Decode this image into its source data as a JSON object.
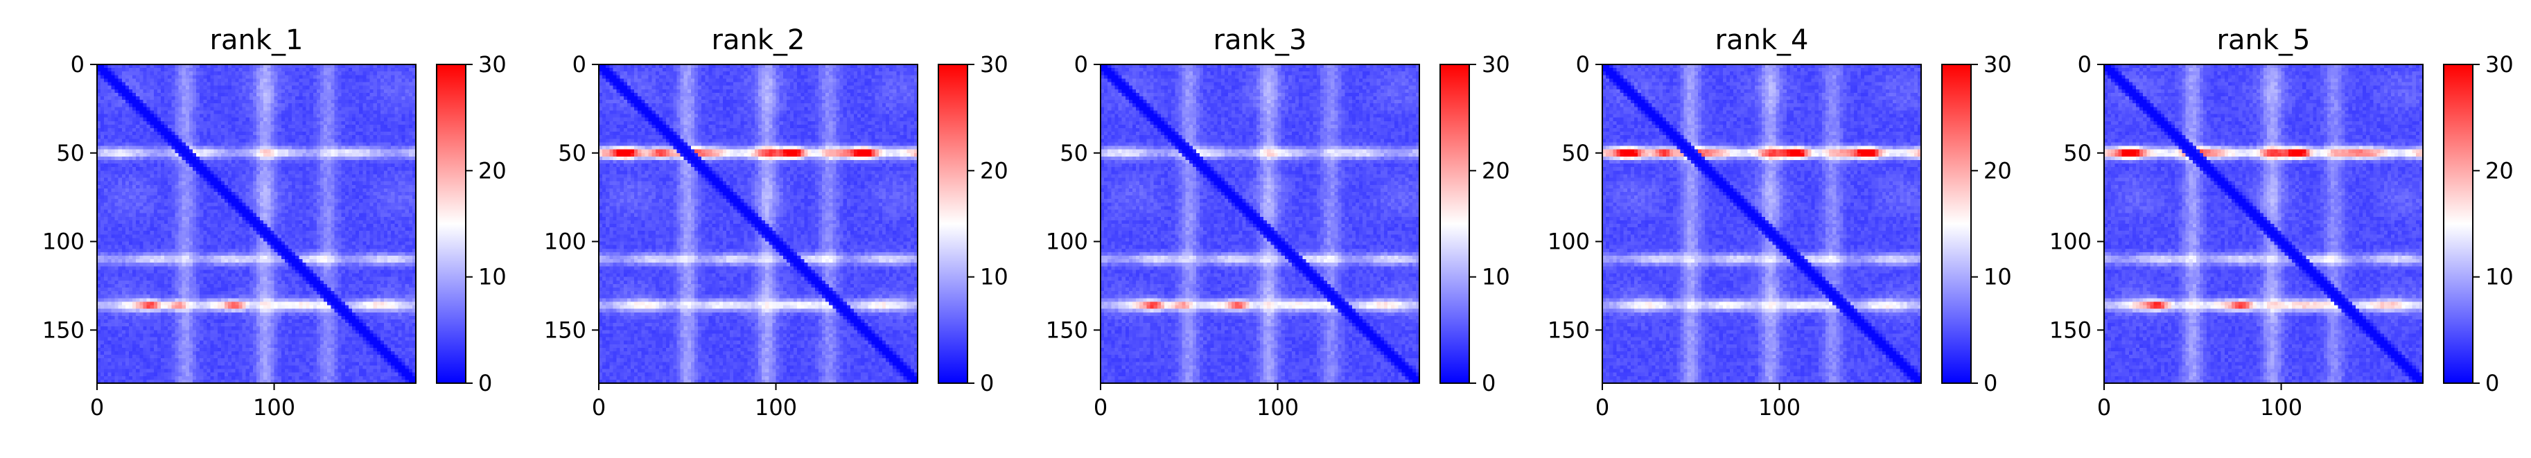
{
  "chart_data": [
    {
      "type": "heatmap",
      "title": "rank_1",
      "size": 180,
      "xlim": [
        0,
        180
      ],
      "ylim": [
        180,
        0
      ],
      "xticks": [
        0,
        100
      ],
      "yticks": [
        0,
        50,
        100,
        150
      ],
      "colorbar": {
        "range": [
          0,
          30
        ],
        "ticks": [
          0,
          10,
          20,
          30
        ],
        "colormap": "bwr"
      },
      "features": {
        "bright_rows": [
          {
            "y": 50,
            "v": 14
          },
          {
            "y": 110,
            "v": 13
          },
          {
            "y": 136,
            "v": 16
          }
        ],
        "bright_cols": [
          {
            "x": 50,
            "v": 11
          },
          {
            "x": 95,
            "v": 12
          },
          {
            "x": 130,
            "v": 10
          }
        ],
        "hot_spots": [
          {
            "x": 30,
            "y": 136,
            "v": 22
          },
          {
            "x": 45,
            "y": 136,
            "v": 20
          },
          {
            "x": 78,
            "y": 136,
            "v": 22
          }
        ]
      }
    },
    {
      "type": "heatmap",
      "title": "rank_2",
      "size": 180,
      "xlim": [
        0,
        180
      ],
      "ylim": [
        180,
        0
      ],
      "xticks": [
        0,
        100
      ],
      "yticks": [
        0,
        50,
        100,
        150
      ],
      "colorbar": {
        "range": [
          0,
          30
        ],
        "ticks": [
          0,
          10,
          20,
          30
        ],
        "colormap": "bwr"
      },
      "features": {
        "bright_rows": [
          {
            "y": 50,
            "v": 24
          },
          {
            "y": 110,
            "v": 13
          },
          {
            "y": 136,
            "v": 15
          }
        ],
        "bright_cols": [
          {
            "x": 50,
            "v": 12
          },
          {
            "x": 95,
            "v": 12
          },
          {
            "x": 130,
            "v": 10
          }
        ],
        "hot_spots": [
          {
            "x": 15,
            "y": 50,
            "v": 26
          },
          {
            "x": 35,
            "y": 50,
            "v": 25
          },
          {
            "x": 110,
            "y": 50,
            "v": 28
          },
          {
            "x": 150,
            "y": 50,
            "v": 27
          }
        ]
      }
    },
    {
      "type": "heatmap",
      "title": "rank_3",
      "size": 180,
      "xlim": [
        0,
        180
      ],
      "ylim": [
        180,
        0
      ],
      "xticks": [
        0,
        100
      ],
      "yticks": [
        0,
        50,
        100,
        150
      ],
      "colorbar": {
        "range": [
          0,
          30
        ],
        "ticks": [
          0,
          10,
          20,
          30
        ],
        "colormap": "bwr"
      },
      "features": {
        "bright_rows": [
          {
            "y": 50,
            "v": 14
          },
          {
            "y": 110,
            "v": 13
          },
          {
            "y": 136,
            "v": 16
          }
        ],
        "bright_cols": [
          {
            "x": 50,
            "v": 11
          },
          {
            "x": 95,
            "v": 12
          },
          {
            "x": 130,
            "v": 10
          }
        ],
        "hot_spots": [
          {
            "x": 30,
            "y": 136,
            "v": 22
          },
          {
            "x": 45,
            "y": 136,
            "v": 20
          },
          {
            "x": 78,
            "y": 136,
            "v": 22
          }
        ]
      }
    },
    {
      "type": "heatmap",
      "title": "rank_4",
      "size": 180,
      "xlim": [
        0,
        180
      ],
      "ylim": [
        180,
        0
      ],
      "xticks": [
        0,
        100
      ],
      "yticks": [
        0,
        50,
        100,
        150
      ],
      "colorbar": {
        "range": [
          0,
          30
        ],
        "ticks": [
          0,
          10,
          20,
          30
        ],
        "colormap": "bwr"
      },
      "features": {
        "bright_rows": [
          {
            "y": 50,
            "v": 24
          },
          {
            "y": 110,
            "v": 13
          },
          {
            "y": 136,
            "v": 15
          }
        ],
        "bright_cols": [
          {
            "x": 50,
            "v": 12
          },
          {
            "x": 95,
            "v": 12
          },
          {
            "x": 130,
            "v": 10
          }
        ],
        "hot_spots": [
          {
            "x": 15,
            "y": 50,
            "v": 26
          },
          {
            "x": 35,
            "y": 50,
            "v": 25
          },
          {
            "x": 110,
            "y": 50,
            "v": 28
          },
          {
            "x": 150,
            "y": 50,
            "v": 27
          }
        ]
      }
    },
    {
      "type": "heatmap",
      "title": "rank_5",
      "size": 180,
      "xlim": [
        0,
        180
      ],
      "ylim": [
        180,
        0
      ],
      "xticks": [
        0,
        100
      ],
      "yticks": [
        0,
        50,
        100,
        150
      ],
      "colorbar": {
        "range": [
          0,
          30
        ],
        "ticks": [
          0,
          10,
          20,
          30
        ],
        "colormap": "bwr"
      },
      "features": {
        "bright_rows": [
          {
            "y": 50,
            "v": 24
          },
          {
            "y": 110,
            "v": 13
          },
          {
            "y": 136,
            "v": 18
          }
        ],
        "bright_cols": [
          {
            "x": 50,
            "v": 12
          },
          {
            "x": 95,
            "v": 12
          },
          {
            "x": 130,
            "v": 10
          }
        ],
        "hot_spots": [
          {
            "x": 15,
            "y": 50,
            "v": 26
          },
          {
            "x": 110,
            "y": 50,
            "v": 28
          },
          {
            "x": 30,
            "y": 136,
            "v": 22
          },
          {
            "x": 78,
            "y": 136,
            "v": 22
          }
        ]
      }
    }
  ]
}
